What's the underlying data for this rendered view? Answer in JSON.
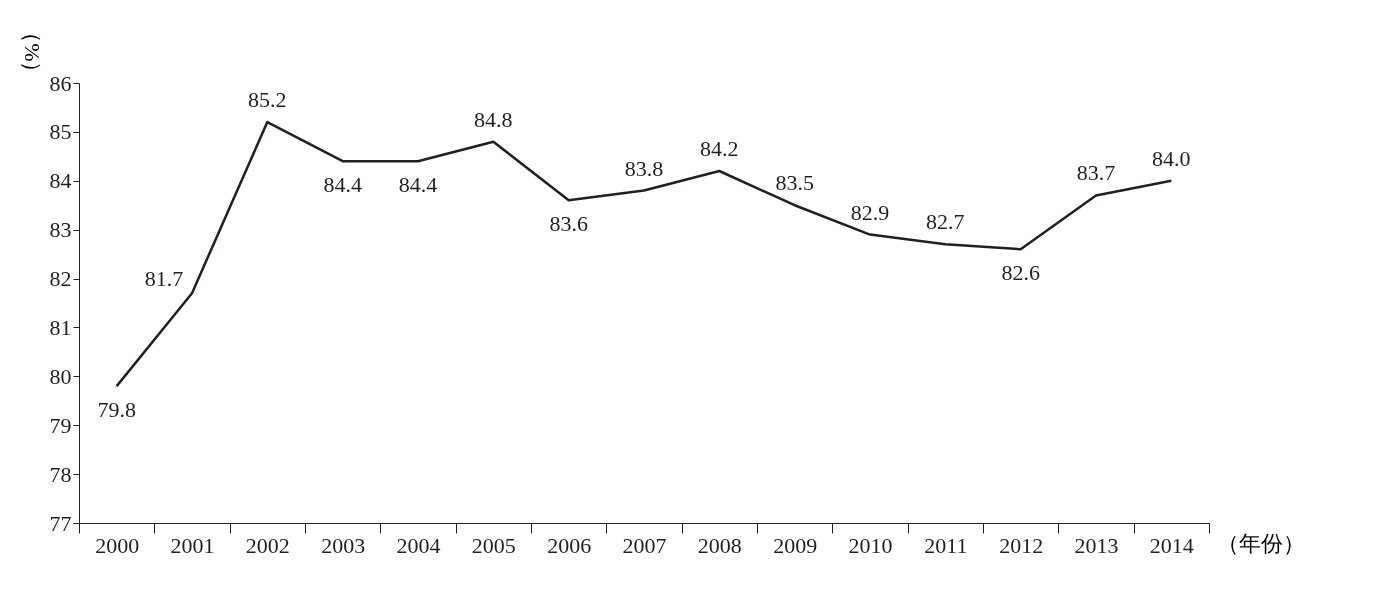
{
  "chart_data": {
    "type": "line",
    "xlabel": "（年份）",
    "ylabel": "（%）",
    "categories": [
      "2000",
      "2001",
      "2002",
      "2003",
      "2004",
      "2005",
      "2006",
      "2007",
      "2008",
      "2009",
      "2010",
      "2011",
      "2012",
      "2013",
      "2014"
    ],
    "series": [
      {
        "color": "#231f20",
        "values": [
          79.8,
          81.7,
          85.2,
          84.4,
          84.4,
          84.8,
          83.6,
          83.8,
          84.2,
          83.5,
          82.9,
          82.7,
          82.6,
          83.7,
          84.0
        ]
      }
    ],
    "ylim": [
      77,
      86
    ],
    "yticks": [
      77,
      78,
      79,
      80,
      81,
      82,
      83,
      84,
      85,
      86
    ],
    "value_labels": [
      "79.8",
      "81.7",
      "85.2",
      "84.4",
      "84.4",
      "84.8",
      "83.6",
      "83.8",
      "84.2",
      "83.5",
      "82.9",
      "82.7",
      "82.6",
      "83.7",
      "84.0"
    ],
    "grid": false,
    "legend": false,
    "marker": "none",
    "line_style": "solid"
  }
}
